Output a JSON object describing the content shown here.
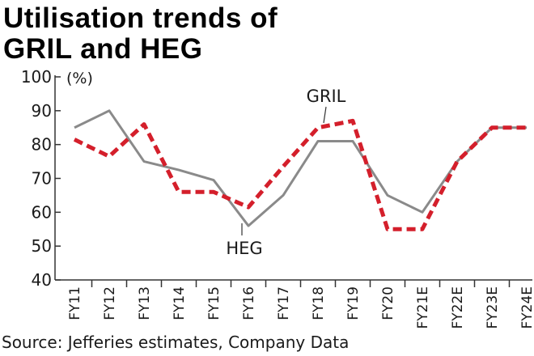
{
  "title_lines": [
    "Utilisation trends of",
    "GRIL and HEG"
  ],
  "source": "Source: Jefferies estimates, Company Data",
  "chart_data": {
    "type": "line",
    "unit_label": "(%)",
    "categories": [
      "FY11",
      "FY12",
      "FY13",
      "FY14",
      "FY15",
      "FY16",
      "FY17",
      "FY18",
      "FY19",
      "FY20",
      "FY21E",
      "FY22E",
      "FY23E",
      "FY24E"
    ],
    "yticks": [
      100,
      90,
      80,
      70,
      60,
      50,
      40
    ],
    "ylim": [
      40,
      100
    ],
    "grid": false,
    "series": [
      {
        "name": "GRIL",
        "style": "solid",
        "color": "#8a8a8a",
        "values": [
          85,
          90,
          75,
          72.5,
          69.5,
          56,
          65,
          81,
          81,
          65,
          60,
          75,
          85,
          85
        ]
      },
      {
        "name": "HEG",
        "style": "dashed",
        "color": "#d41f2b",
        "values": [
          81.5,
          76.5,
          86,
          66,
          66,
          61.5,
          73.5,
          85,
          87,
          55,
          55,
          75,
          85,
          85
        ]
      }
    ],
    "annotations": [
      {
        "text": "GRIL",
        "series": "GRIL",
        "category": "FY18"
      },
      {
        "text": "HEG",
        "series": "GRIL",
        "category": "FY16"
      }
    ]
  }
}
